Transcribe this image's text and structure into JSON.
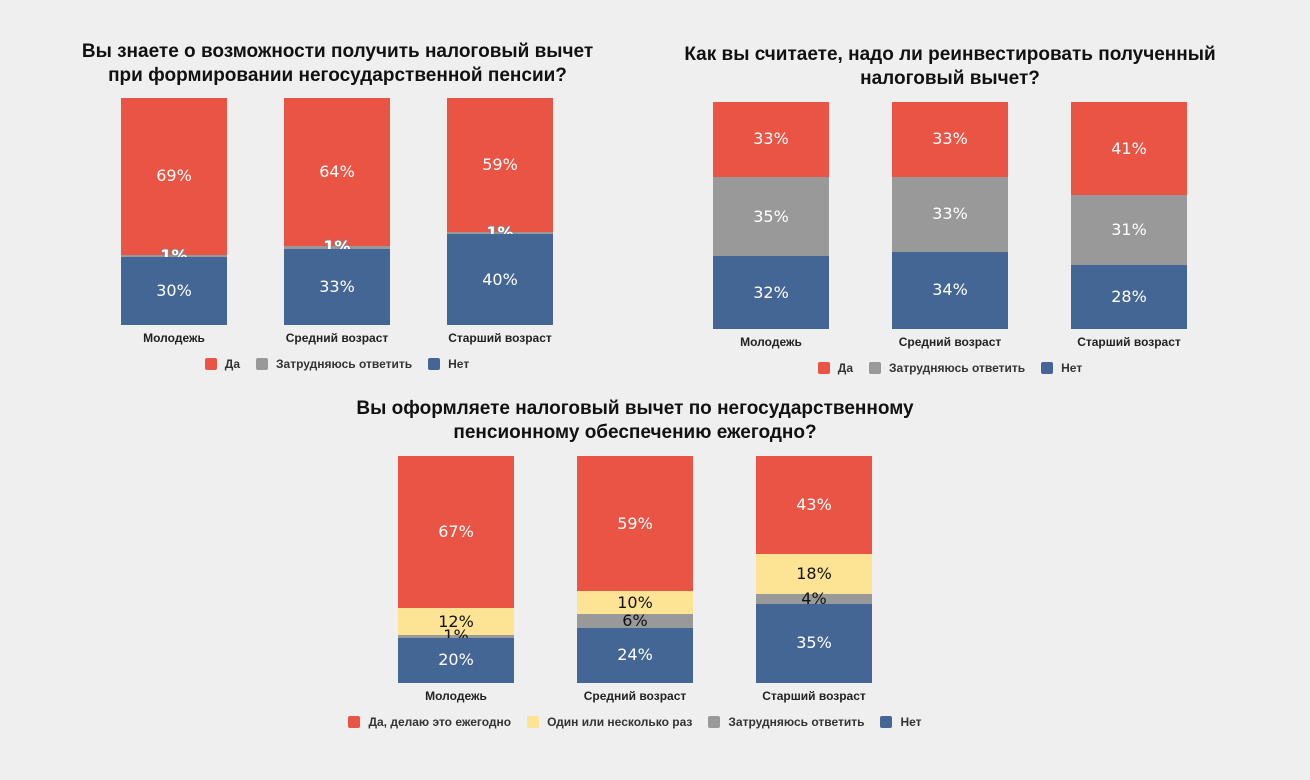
{
  "chart_data": [
    {
      "type": "bar",
      "stacked": true,
      "title": "Вы знаете о возможности получить налоговый вычет при формировании негосударственной пенсии?",
      "title_lines": [
        "Вы знаете о возможности получить налоговый вычет",
        "при формировании негосударственной пенсии?"
      ],
      "categories": [
        "Молодежь",
        "Средний возраст",
        "Старший возраст"
      ],
      "series": [
        {
          "name": "Да",
          "color": "#ea5444",
          "values": [
            69,
            64,
            59
          ],
          "labels": [
            "69%",
            "64%",
            "59%"
          ]
        },
        {
          "name": "Затрудняюсь ответить",
          "color": "#999999",
          "values": [
            1,
            1,
            1
          ],
          "labels": [
            "1%",
            "1%",
            "1%"
          ]
        },
        {
          "name": "Нет",
          "color": "#436694",
          "values": [
            30,
            33,
            40
          ],
          "labels": [
            "30%",
            "33%",
            "40%"
          ]
        }
      ],
      "ylim": [
        0,
        100
      ],
      "legend": "bottom"
    },
    {
      "type": "bar",
      "stacked": true,
      "title": "Как вы считаете, надо ли реинвестировать полученный налоговый вычет?",
      "title_lines": [
        "Как вы считаете, надо ли реинвестировать полученный",
        "налоговый вычет?"
      ],
      "categories": [
        "Молодежь",
        "Средний возраст",
        "Старший возраст"
      ],
      "series": [
        {
          "name": "Да",
          "color": "#ea5444",
          "values": [
            33,
            33,
            41
          ],
          "labels": [
            "33%",
            "33%",
            "41%"
          ]
        },
        {
          "name": "Затрудняюсь ответить",
          "color": "#999999",
          "values": [
            35,
            33,
            31
          ],
          "labels": [
            "35%",
            "33%",
            "31%"
          ]
        },
        {
          "name": "Нет",
          "color": "#436694",
          "values": [
            32,
            34,
            28
          ],
          "labels": [
            "32%",
            "34%",
            "28%"
          ]
        }
      ],
      "ylim": [
        0,
        100
      ],
      "legend": "bottom"
    },
    {
      "type": "bar",
      "stacked": true,
      "title": "Вы оформляете налоговый вычет по негосударственному пенсионному обеспечению ежегодно?",
      "title_lines": [
        "Вы оформляете налоговый вычет по негосударственному",
        "пенсионному обеспечению ежегодно?"
      ],
      "categories": [
        "Молодежь",
        "Средний возраст",
        "Старший возраст"
      ],
      "series": [
        {
          "name": "Да, делаю это ежегодно",
          "color": "#ea5444",
          "values": [
            67,
            59,
            43
          ],
          "labels": [
            "67%",
            "59%",
            "43%"
          ]
        },
        {
          "name": "Один или несколько раз",
          "color": "#fde495",
          "values": [
            12,
            10,
            18
          ],
          "labels": [
            "12%",
            "10%",
            "18%"
          ]
        },
        {
          "name": "Затрудняюсь ответить",
          "color": "#999999",
          "values": [
            1,
            6,
            4
          ],
          "labels": [
            "1%",
            "6%",
            "4%"
          ]
        },
        {
          "name": "Нет",
          "color": "#436694",
          "values": [
            20,
            24,
            35
          ],
          "labels": [
            "20%",
            "24%",
            "35%"
          ]
        }
      ],
      "ylim": [
        0,
        100
      ],
      "legend": "bottom"
    }
  ]
}
